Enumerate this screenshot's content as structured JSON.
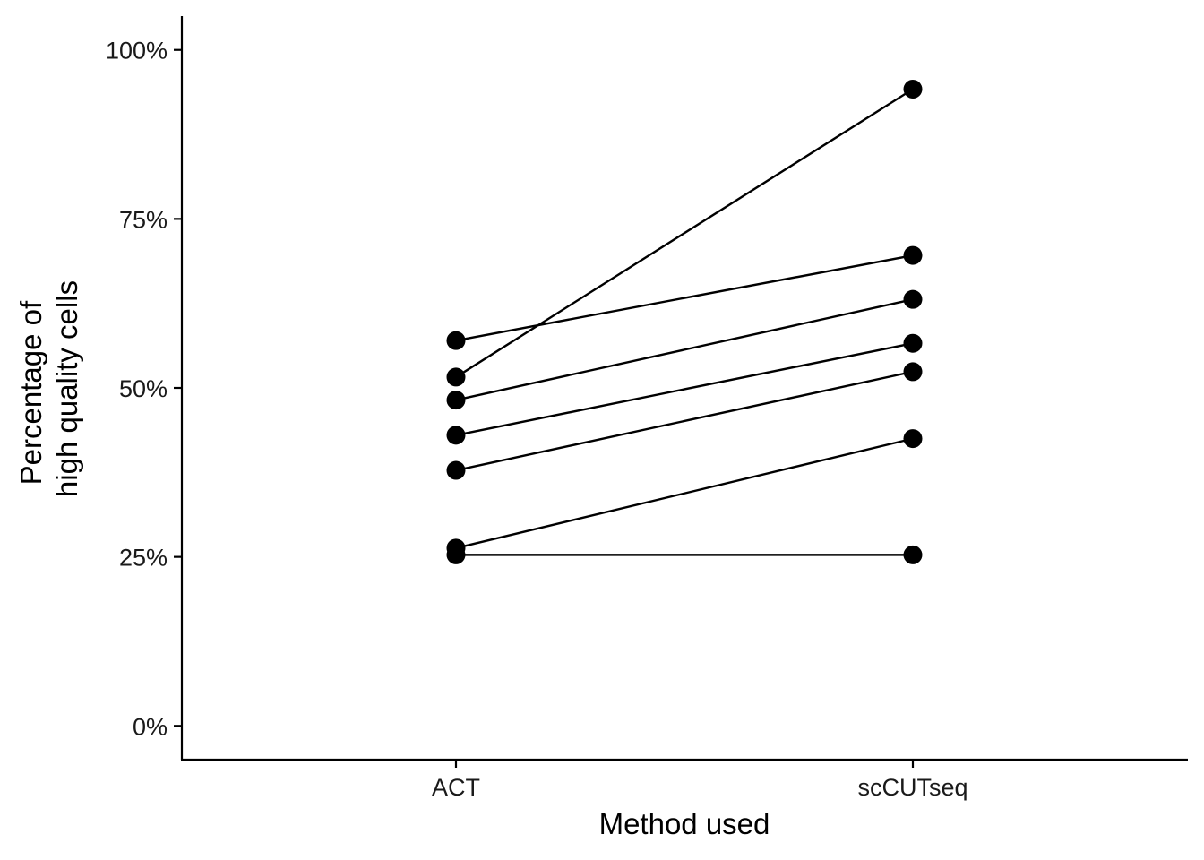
{
  "chart_data": {
    "type": "line",
    "title": "",
    "xlabel": "Method used",
    "ylabel_lines": [
      "Percentage of",
      "high quality cells"
    ],
    "categories": [
      "ACT",
      "scCUTseq"
    ],
    "y_ticks": [
      0,
      25,
      50,
      75,
      100
    ],
    "y_tick_labels": [
      "0%",
      "25%",
      "50%",
      "75%",
      "100%"
    ],
    "ylim": [
      -5,
      105
    ],
    "grid": false,
    "legend": "none",
    "series": [
      {
        "values": [
          57.0,
          69.6
        ]
      },
      {
        "values": [
          51.6,
          94.2
        ]
      },
      {
        "values": [
          48.2,
          63.1
        ]
      },
      {
        "values": [
          43.0,
          56.6
        ]
      },
      {
        "values": [
          37.8,
          52.4
        ]
      },
      {
        "values": [
          26.3,
          42.5
        ]
      },
      {
        "values": [
          25.3,
          25.3
        ]
      }
    ]
  }
}
